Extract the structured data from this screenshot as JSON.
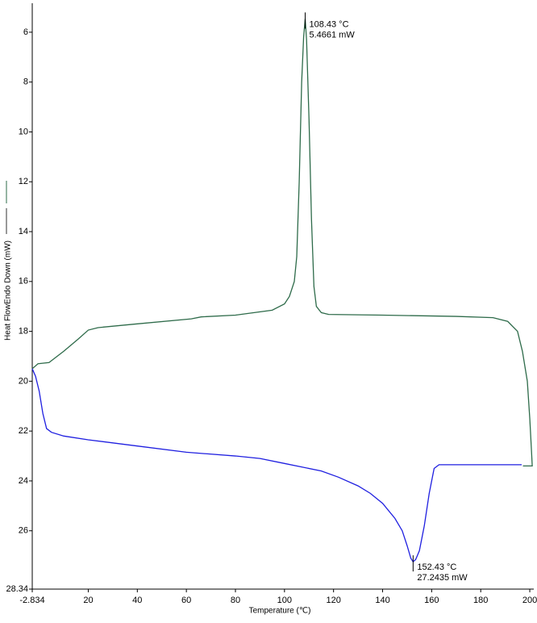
{
  "chart_data": {
    "type": "line",
    "xlabel": "Temperature (℃)",
    "ylabel": "Heat FlowEndo Down (mW)",
    "xlim": [
      -2.834,
      201.3
    ],
    "ylim": [
      28.34,
      4.87
    ],
    "xticks": [
      -2.834,
      20,
      40,
      60,
      80,
      100,
      120,
      140,
      160,
      180,
      200
    ],
    "yticks": [
      6,
      8,
      10,
      12,
      14,
      16,
      18,
      20,
      22,
      24,
      26,
      28.34
    ],
    "series": [
      {
        "color": "#2e6b4a",
        "x": [
          -2.834,
          -0.5,
          4,
          10,
          16,
          20,
          24,
          40,
          62,
          66,
          80,
          95,
          100,
          102,
          104,
          105,
          106,
          107,
          107.8,
          108.43,
          109,
          110,
          111,
          112,
          113,
          115,
          118,
          140,
          170,
          185,
          191,
          195,
          197,
          199,
          200,
          200.7,
          201,
          197.2
        ],
        "values": [
          19.5,
          19.3,
          19.25,
          18.8,
          18.3,
          17.95,
          17.85,
          17.7,
          17.5,
          17.42,
          17.35,
          17.15,
          16.9,
          16.6,
          16,
          15,
          12,
          8,
          6.2,
          5.4661,
          6.3,
          9.5,
          13.5,
          16.2,
          17,
          17.25,
          17.32,
          17.35,
          17.4,
          17.45,
          17.6,
          18.0,
          18.8,
          20.0,
          21.5,
          22.8,
          23.4,
          23.4
        ]
      },
      {
        "color": "#1f1fe0",
        "x": [
          196.7,
          175,
          163,
          161,
          159,
          157,
          155,
          153.5,
          152.43,
          151.5,
          150,
          148,
          145,
          140,
          135,
          130,
          122,
          115,
          100,
          90,
          80,
          60,
          40,
          20,
          10,
          5,
          3,
          1.5,
          0,
          -1.5,
          -2.834
        ],
        "values": [
          23.35,
          23.35,
          23.35,
          23.5,
          24.5,
          25.8,
          26.8,
          27.15,
          27.2435,
          27.1,
          26.6,
          26,
          25.5,
          24.9,
          24.5,
          24.2,
          23.85,
          23.6,
          23.3,
          23.1,
          23.0,
          22.85,
          22.6,
          22.35,
          22.2,
          22.05,
          21.9,
          21.3,
          20.4,
          19.8,
          19.5
        ]
      }
    ],
    "annotations": [
      {
        "x": 108.43,
        "y": 5.4661,
        "lines": [
          "108.43 °C",
          "5.4661 mW"
        ]
      },
      {
        "x": 152.43,
        "y": 27.2435,
        "lines": [
          "152.43 °C",
          "27.2435 mW"
        ]
      }
    ]
  }
}
